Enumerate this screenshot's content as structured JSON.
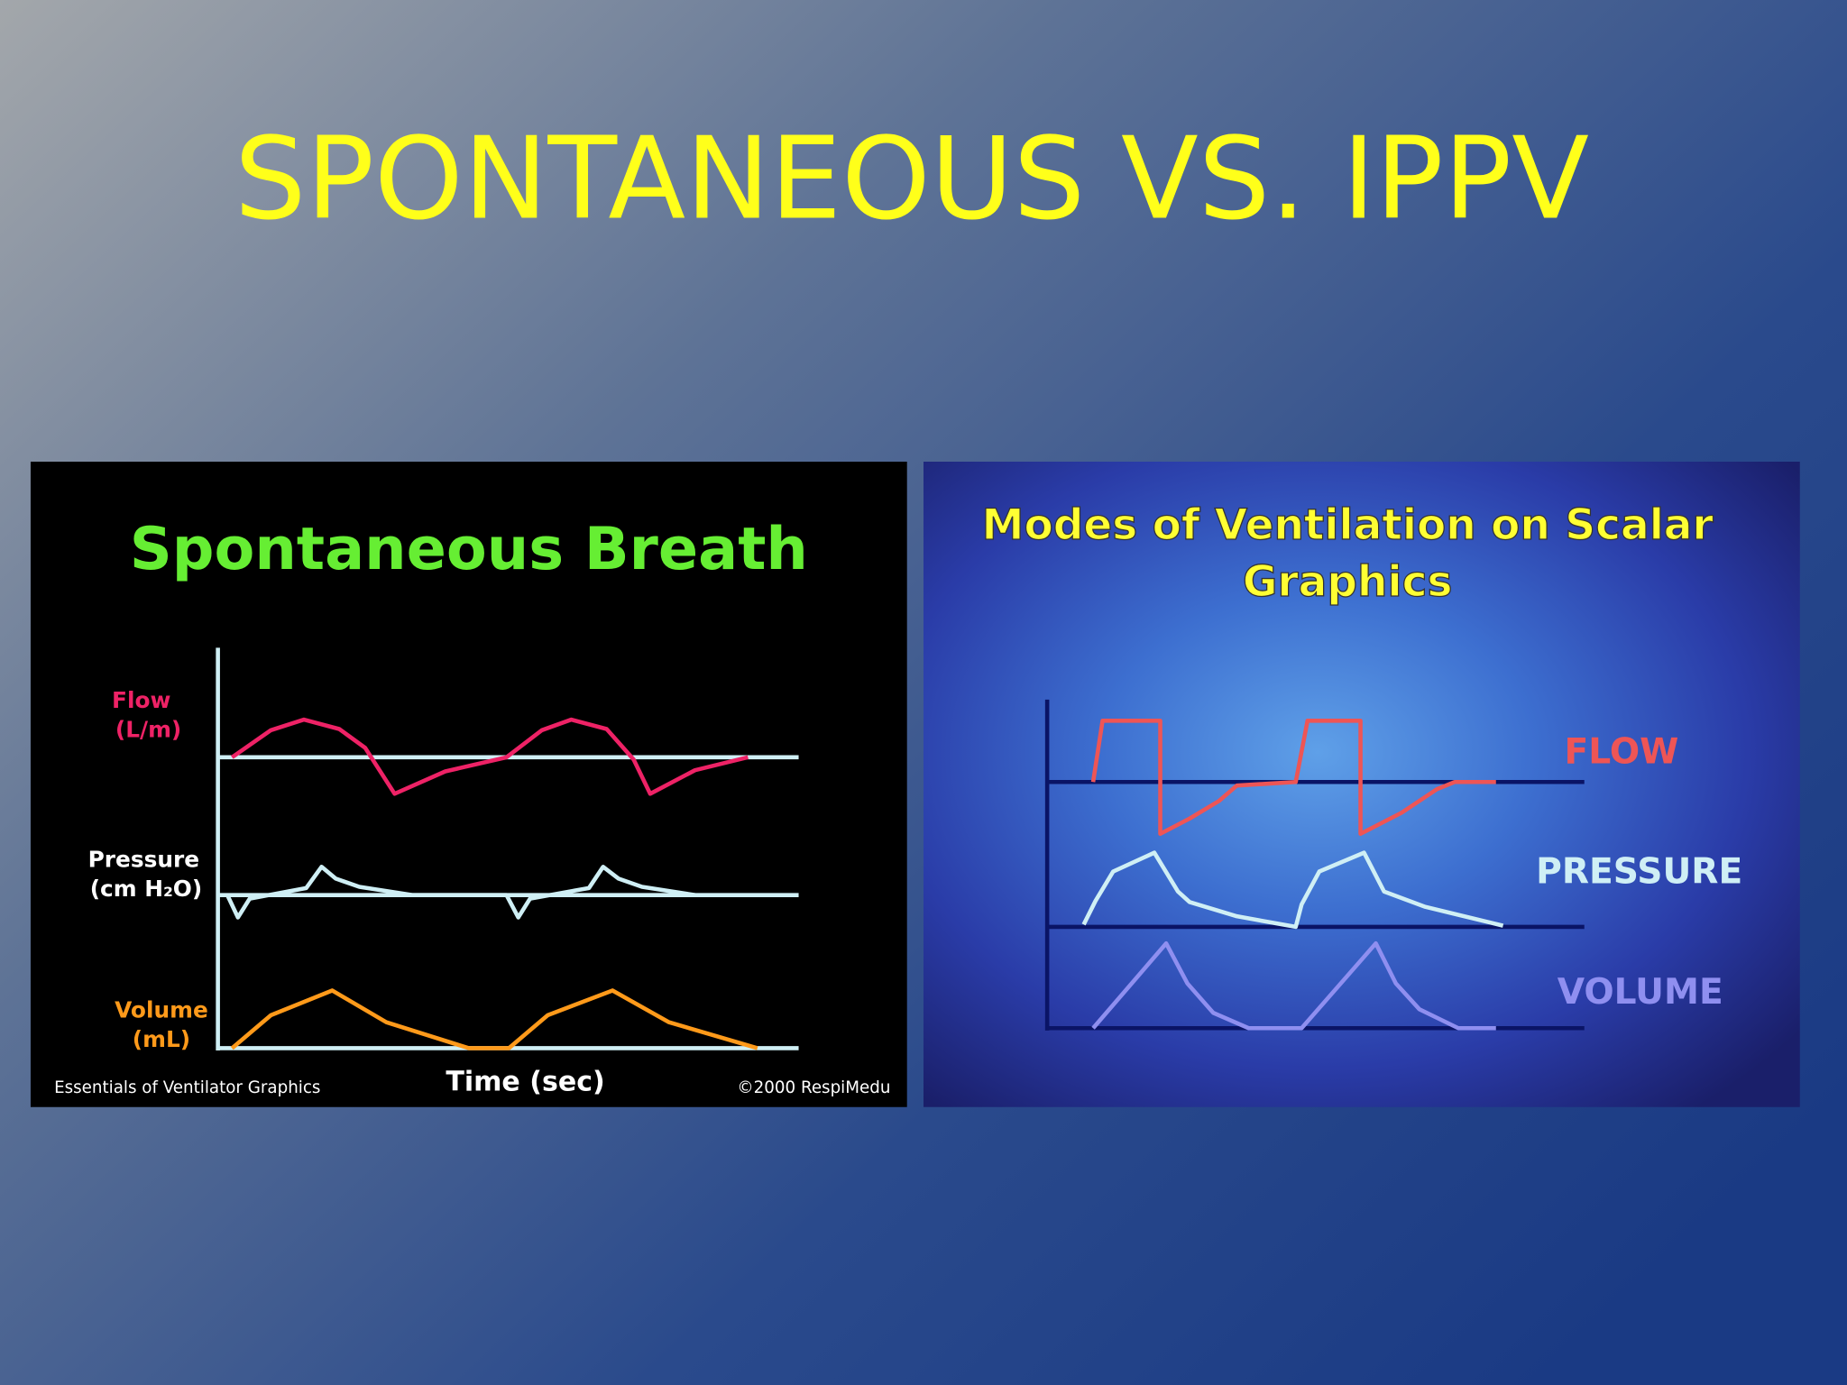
{
  "title": "SPONTANEOUS VS. IPPV",
  "left_panel": {
    "title": "Spontaneous Breath",
    "flow_label": "Flow",
    "flow_unit": "(L/m)",
    "pressure_label": "Pressure",
    "pressure_unit": "(cm H₂O)",
    "volume_label": "Volume",
    "volume_unit": "(mL)",
    "x_label": "Time (sec)",
    "footer_left": "Essentials of Ventilator Graphics",
    "footer_right": "©2000 RespiMedu"
  },
  "right_panel": {
    "title_lines": [
      "Modes of Ventilation on Scalar",
      "Graphics"
    ],
    "flow_label": "FLOW",
    "pressure_label": "PRESSURE",
    "volume_label": "VOLUME"
  }
}
